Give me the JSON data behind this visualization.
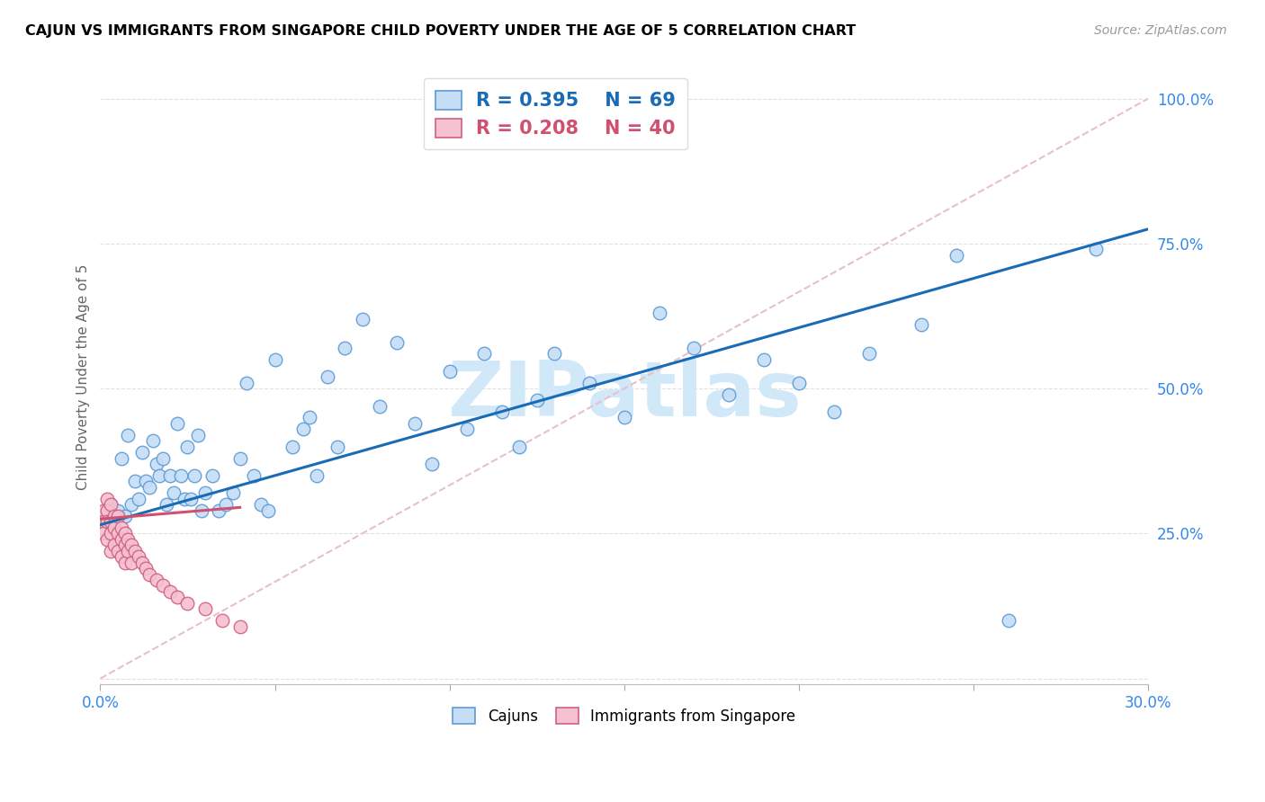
{
  "title": "CAJUN VS IMMIGRANTS FROM SINGAPORE CHILD POVERTY UNDER THE AGE OF 5 CORRELATION CHART",
  "source": "Source: ZipAtlas.com",
  "ylabel": "Child Poverty Under the Age of 5",
  "xlim": [
    0.0,
    0.3
  ],
  "ylim": [
    -0.01,
    1.05
  ],
  "ytick_vals": [
    0.0,
    0.25,
    0.5,
    0.75,
    1.0
  ],
  "ytick_labels": [
    "",
    "25.0%",
    "50.0%",
    "75.0%",
    "100.0%"
  ],
  "xtick_vals": [
    0.0,
    0.05,
    0.1,
    0.15,
    0.2,
    0.25,
    0.3
  ],
  "xtick_labels": [
    "0.0%",
    "",
    "",
    "",
    "",
    "",
    "30.0%"
  ],
  "cajun_R": 0.395,
  "cajun_N": 69,
  "singapore_R": 0.208,
  "singapore_N": 40,
  "cajun_face": "#c5ddf5",
  "cajun_edge": "#5b9bd5",
  "sing_face": "#f5c0d0",
  "sing_edge": "#d06080",
  "cajun_line_color": "#1a6bb5",
  "sing_line_color": "#d05070",
  "diag_color": "#e8c0c8",
  "watermark_color": "#d0e8f8",
  "cajun_x": [
    0.003,
    0.005,
    0.006,
    0.007,
    0.008,
    0.009,
    0.01,
    0.011,
    0.012,
    0.013,
    0.014,
    0.015,
    0.016,
    0.017,
    0.018,
    0.019,
    0.02,
    0.021,
    0.022,
    0.023,
    0.024,
    0.025,
    0.026,
    0.027,
    0.028,
    0.029,
    0.03,
    0.032,
    0.034,
    0.036,
    0.038,
    0.04,
    0.042,
    0.044,
    0.046,
    0.048,
    0.05,
    0.055,
    0.058,
    0.06,
    0.062,
    0.065,
    0.068,
    0.07,
    0.075,
    0.08,
    0.085,
    0.09,
    0.095,
    0.1,
    0.105,
    0.11,
    0.115,
    0.12,
    0.125,
    0.13,
    0.14,
    0.15,
    0.16,
    0.17,
    0.18,
    0.19,
    0.2,
    0.21,
    0.22,
    0.235,
    0.245,
    0.26,
    0.285
  ],
  "cajun_y": [
    0.3,
    0.29,
    0.38,
    0.28,
    0.42,
    0.3,
    0.34,
    0.31,
    0.39,
    0.34,
    0.33,
    0.41,
    0.37,
    0.35,
    0.38,
    0.3,
    0.35,
    0.32,
    0.44,
    0.35,
    0.31,
    0.4,
    0.31,
    0.35,
    0.42,
    0.29,
    0.32,
    0.35,
    0.29,
    0.3,
    0.32,
    0.38,
    0.51,
    0.35,
    0.3,
    0.29,
    0.55,
    0.4,
    0.43,
    0.45,
    0.35,
    0.52,
    0.4,
    0.57,
    0.62,
    0.47,
    0.58,
    0.44,
    0.37,
    0.53,
    0.43,
    0.56,
    0.46,
    0.4,
    0.48,
    0.56,
    0.51,
    0.45,
    0.63,
    0.57,
    0.49,
    0.55,
    0.51,
    0.46,
    0.56,
    0.61,
    0.73,
    0.1,
    0.74
  ],
  "sing_x": [
    0.001,
    0.001,
    0.001,
    0.002,
    0.002,
    0.002,
    0.002,
    0.003,
    0.003,
    0.003,
    0.003,
    0.004,
    0.004,
    0.004,
    0.005,
    0.005,
    0.005,
    0.006,
    0.006,
    0.006,
    0.007,
    0.007,
    0.007,
    0.008,
    0.008,
    0.009,
    0.009,
    0.01,
    0.011,
    0.012,
    0.013,
    0.014,
    0.016,
    0.018,
    0.02,
    0.022,
    0.025,
    0.03,
    0.035,
    0.04
  ],
  "sing_y": [
    0.29,
    0.27,
    0.25,
    0.31,
    0.29,
    0.27,
    0.24,
    0.3,
    0.27,
    0.25,
    0.22,
    0.28,
    0.26,
    0.23,
    0.28,
    0.25,
    0.22,
    0.26,
    0.24,
    0.21,
    0.25,
    0.23,
    0.2,
    0.24,
    0.22,
    0.23,
    0.2,
    0.22,
    0.21,
    0.2,
    0.19,
    0.18,
    0.17,
    0.16,
    0.15,
    0.14,
    0.13,
    0.12,
    0.1,
    0.09
  ],
  "cajun_line_x0": 0.0,
  "cajun_line_y0": 0.265,
  "cajun_line_x1": 0.3,
  "cajun_line_y1": 0.775,
  "sing_line_x0": 0.0,
  "sing_line_y0": 0.275,
  "sing_line_x1": 0.04,
  "sing_line_y1": 0.295
}
